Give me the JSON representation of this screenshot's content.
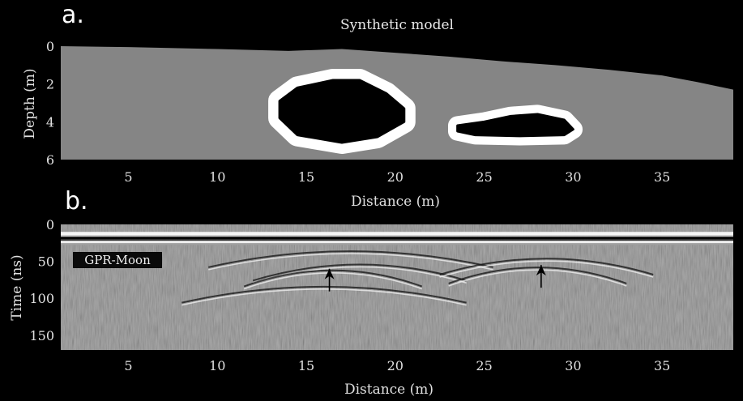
{
  "chart_data": [
    {
      "panel_label": "a.",
      "type": "heatmap",
      "title": "Synthetic model",
      "xlabel": "Distance (m)",
      "ylabel": "Depth (m)",
      "xlim": [
        1.2,
        39
      ],
      "ylim": [
        6,
        0
      ],
      "x_ticks": [
        5,
        10,
        15,
        20,
        25,
        30,
        35
      ],
      "y_ticks": [
        0,
        2,
        4,
        6
      ],
      "colors": {
        "background": "#000000",
        "regolith": "#858585",
        "rim": "#ffffff",
        "void": "#000000"
      },
      "surface": {
        "x": [
          1.2,
          5,
          10,
          14,
          17,
          20,
          23,
          26,
          29,
          32,
          35,
          37,
          39
        ],
        "depth": [
          0.0,
          0.05,
          0.15,
          0.25,
          0.15,
          0.35,
          0.55,
          0.8,
          1.0,
          1.25,
          1.55,
          1.9,
          2.3
        ]
      },
      "voids": [
        {
          "x": [
            13.5,
            14.5,
            16.5,
            18.0,
            19.5,
            20.5,
            20.5,
            19.0,
            17.0,
            14.5,
            13.5
          ],
          "depth": [
            2.9,
            2.2,
            1.8,
            1.8,
            2.5,
            3.3,
            4.0,
            4.8,
            5.1,
            4.7,
            3.8
          ],
          "rim_width": 0.6
        },
        {
          "x": [
            23.5,
            25.0,
            26.5,
            28.0,
            29.5,
            30.0,
            29.5,
            27.0,
            24.5,
            23.5
          ],
          "depth": [
            4.2,
            4.0,
            3.7,
            3.6,
            3.9,
            4.4,
            4.7,
            4.75,
            4.7,
            4.5
          ],
          "rim_width": 0.5
        }
      ]
    },
    {
      "panel_label": "b.",
      "type": "heatmap",
      "title": "",
      "xlabel": "Distance (m)",
      "ylabel": "Time (ns)",
      "xlim": [
        1.2,
        39
      ],
      "ylim": [
        170,
        0
      ],
      "x_ticks": [
        5,
        10,
        15,
        20,
        25,
        30,
        35
      ],
      "y_ticks": [
        0,
        50,
        100,
        150
      ],
      "badge_text": "GPR-Moon",
      "surface_reflection_time": 20,
      "hyperbolas": [
        {
          "apex_x": 17.5,
          "apex_t": 30,
          "half_width": 8
        },
        {
          "apex_x": 18.0,
          "apex_t": 48,
          "half_width": 6
        },
        {
          "apex_x": 16.5,
          "apex_t": 56,
          "half_width": 5
        },
        {
          "apex_x": 16.0,
          "apex_t": 78,
          "half_width": 8
        },
        {
          "apex_x": 28.5,
          "apex_t": 40,
          "half_width": 6
        },
        {
          "apex_x": 28.0,
          "apex_t": 52,
          "half_width": 5
        }
      ],
      "arrows": [
        {
          "x": 16.3,
          "t": 60
        },
        {
          "x": 28.2,
          "t": 55
        }
      ]
    }
  ]
}
